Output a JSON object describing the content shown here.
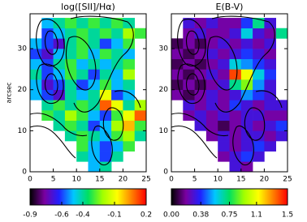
{
  "chart_data": [
    {
      "type": "heatmap",
      "title": "log([SII]/Hα)",
      "ylabel": "arcsec",
      "x": [
        1.25,
        3.75,
        6.25,
        8.75,
        11.25,
        13.75,
        16.25,
        18.75,
        21.25,
        23.75
      ],
      "y": [
        1.25,
        3.75,
        6.25,
        8.75,
        11.25,
        13.75,
        16.25,
        18.75,
        21.25,
        23.75,
        26.25,
        28.75,
        31.25,
        33.75,
        36.25
      ],
      "z": [
        [
          null,
          null,
          null,
          null,
          null,
          -0.5,
          -0.4,
          null,
          null,
          null
        ],
        [
          null,
          null,
          null,
          null,
          -0.4,
          -0.5,
          -0.6,
          -0.4,
          null,
          null
        ],
        [
          null,
          null,
          null,
          null,
          -0.3,
          -0.5,
          -0.6,
          -0.5,
          -0.3,
          null
        ],
        [
          null,
          null,
          null,
          -0.4,
          -0.3,
          -0.4,
          -0.5,
          -0.3,
          -0.2,
          -0.4
        ],
        [
          null,
          null,
          -0.4,
          -0.3,
          -0.4,
          -0.6,
          -0.5,
          -0.2,
          0.0,
          -0.3
        ],
        [
          null,
          -0.3,
          -0.4,
          -0.2,
          -0.3,
          -0.5,
          -0.6,
          -0.3,
          -0.1,
          0.1
        ],
        [
          null,
          -0.4,
          -0.3,
          -0.4,
          -0.3,
          -0.4,
          0.1,
          -0.1,
          -0.4,
          -0.2
        ],
        [
          -0.5,
          -0.6,
          -0.7,
          -0.4,
          -0.5,
          -0.4,
          -0.1,
          -0.6,
          -0.5,
          null
        ],
        [
          -0.5,
          -0.7,
          -0.6,
          -0.4,
          -0.6,
          -0.5,
          -0.3,
          -0.5,
          -0.4,
          null
        ],
        [
          -0.4,
          -0.6,
          -0.5,
          -0.3,
          -0.4,
          -0.6,
          -0.4,
          -0.5,
          -0.2,
          null
        ],
        [
          -0.5,
          -0.6,
          -0.4,
          -0.3,
          -0.5,
          -0.4,
          -0.5,
          -0.4,
          -0.3,
          null
        ],
        [
          -0.6,
          -0.7,
          -0.5,
          -0.4,
          -0.3,
          -0.5,
          -0.3,
          -0.4,
          -0.5,
          null
        ],
        [
          -0.5,
          -0.6,
          -0.7,
          -0.4,
          -0.3,
          -0.4,
          -0.6,
          -0.5,
          -0.3,
          null
        ],
        [
          null,
          -0.6,
          -0.5,
          -0.4,
          -0.3,
          -0.4,
          -0.3,
          -0.4,
          -0.2,
          -0.3
        ],
        [
          null,
          -0.5,
          -0.4,
          -0.3,
          -0.4,
          -0.3,
          -0.4,
          -0.3,
          -0.4,
          null
        ]
      ],
      "xlim": [
        0,
        25
      ],
      "ylim": [
        0,
        38.5
      ],
      "xticks": [
        0,
        5,
        10,
        15,
        20,
        25
      ],
      "yticks": [
        0,
        10,
        20,
        30
      ],
      "colorbar": {
        "lim": [
          -0.9,
          0.2
        ],
        "ticks": [
          -0.9,
          -0.6,
          -0.4,
          -0.1,
          0.2
        ],
        "colors": [
          "#000000",
          "#7a00a0",
          "#2020ff",
          "#00c8ff",
          "#00e060",
          "#a0ff00",
          "#ffff00",
          "#ff8000",
          "#ff0000"
        ]
      }
    },
    {
      "type": "heatmap",
      "title": "E(B-V)",
      "x": [
        1.25,
        3.75,
        6.25,
        8.75,
        11.25,
        13.75,
        16.25,
        18.75,
        21.25,
        23.75
      ],
      "y": [
        1.25,
        3.75,
        6.25,
        8.75,
        11.25,
        13.75,
        16.25,
        18.75,
        21.25,
        23.75,
        26.25,
        28.75,
        31.25,
        33.75,
        36.25
      ],
      "z": [
        [
          null,
          null,
          null,
          null,
          null,
          0.3,
          0.2,
          null,
          null,
          null
        ],
        [
          null,
          null,
          null,
          null,
          0.2,
          0.3,
          0.4,
          0.3,
          null,
          null
        ],
        [
          null,
          null,
          null,
          null,
          0.3,
          0.2,
          0.3,
          0.4,
          0.3,
          null
        ],
        [
          null,
          null,
          null,
          0.2,
          0.3,
          0.2,
          0.3,
          0.3,
          0.2,
          0.3
        ],
        [
          null,
          null,
          0.3,
          0.2,
          0.1,
          0.2,
          0.3,
          0.2,
          0.3,
          0.4
        ],
        [
          null,
          0.2,
          0.3,
          0.2,
          0.3,
          0.2,
          0.3,
          0.3,
          0.2,
          0.2
        ],
        [
          null,
          0.3,
          0.2,
          0.3,
          0.2,
          0.4,
          0.3,
          0.2,
          0.3,
          0.3
        ],
        [
          0.2,
          0.1,
          0.2,
          0.3,
          0.2,
          0.3,
          0.5,
          0.4,
          0.3,
          null
        ],
        [
          0.1,
          0.2,
          0.1,
          0.2,
          0.3,
          0.7,
          0.9,
          0.5,
          0.3,
          null
        ],
        [
          0.2,
          0.1,
          0.2,
          0.3,
          0.2,
          1.4,
          1.1,
          0.6,
          0.4,
          null
        ],
        [
          0.1,
          0.2,
          0.1,
          0.2,
          0.3,
          0.6,
          0.5,
          0.4,
          0.3,
          null
        ],
        [
          0.2,
          0.1,
          0.2,
          0.3,
          0.2,
          0.3,
          0.4,
          0.3,
          0.2,
          null
        ],
        [
          0.1,
          0.2,
          0.1,
          0.2,
          0.3,
          0.2,
          0.3,
          0.2,
          0.3,
          null
        ],
        [
          null,
          0.2,
          0.3,
          0.2,
          0.2,
          0.3,
          0.6,
          0.3,
          0.2,
          0.7
        ],
        [
          null,
          0.3,
          0.2,
          0.3,
          0.2,
          0.2,
          0.4,
          0.7,
          0.3,
          null
        ]
      ],
      "xlim": [
        0,
        25
      ],
      "ylim": [
        0,
        38.5
      ],
      "xticks": [
        0,
        5,
        10,
        15,
        20,
        25
      ],
      "yticks": [
        0,
        10,
        20,
        30
      ],
      "colorbar": {
        "lim": [
          0,
          1.5
        ],
        "ticks": [
          {
            "value": 0,
            "label": "0.00"
          },
          0.38,
          0.75,
          1.1,
          1.5
        ],
        "colors": [
          "#000000",
          "#7a00a0",
          "#2020ff",
          "#00c8ff",
          "#00e060",
          "#a0ff00",
          "#ffff00",
          "#ff8000",
          "#ff0000"
        ]
      }
    }
  ]
}
